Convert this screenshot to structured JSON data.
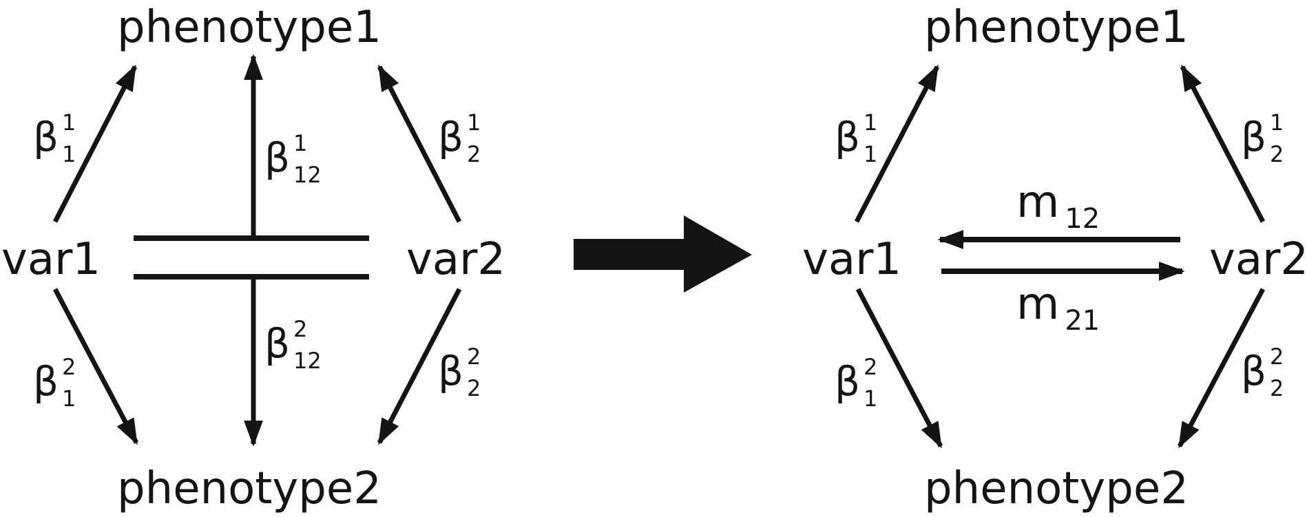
{
  "left": {
    "top_node": "phenotype1",
    "bottom_node": "phenotype2",
    "var_left": "var1",
    "var_right": "var2",
    "coef_b11": {
      "base": "β",
      "sup": "1",
      "sub": "1"
    },
    "coef_b12a": {
      "base": "β",
      "sup": "1",
      "sub": "12"
    },
    "coef_b21": {
      "base": "β",
      "sup": "1",
      "sub": "2"
    },
    "coef_b1_2": {
      "base": "β",
      "sup": "2",
      "sub": "1"
    },
    "coef_b12b": {
      "base": "β",
      "sup": "2",
      "sub": "12"
    },
    "coef_b2_2": {
      "base": "β",
      "sup": "2",
      "sub": "2"
    }
  },
  "right": {
    "top_node": "phenotype1",
    "bottom_node": "phenotype2",
    "var_left": "var1",
    "var_right": "var2",
    "coef_b11": {
      "base": "β",
      "sup": "1",
      "sub": "1"
    },
    "coef_b21": {
      "base": "β",
      "sup": "1",
      "sub": "2"
    },
    "coef_b1_2": {
      "base": "β",
      "sup": "2",
      "sub": "1"
    },
    "coef_b2_2": {
      "base": "β",
      "sup": "2",
      "sub": "2"
    },
    "m12": {
      "base": "m",
      "sub": "12"
    },
    "m21": {
      "base": "m",
      "sub": "21"
    }
  },
  "colors": {
    "ink": "#141414"
  }
}
